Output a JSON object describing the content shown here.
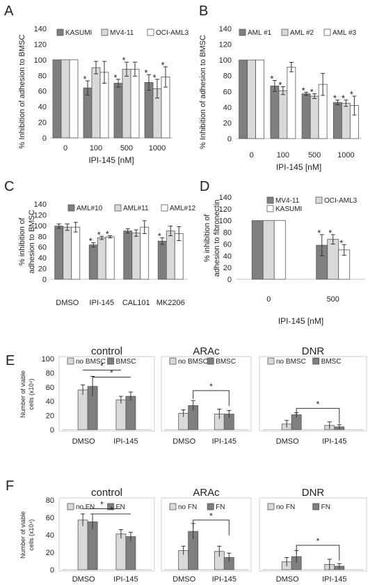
{
  "colors": {
    "dark": "#7f7f7f",
    "light": "#d9d9d9",
    "white": "#ffffff",
    "axis": "#bfbfbf",
    "text": "#222222"
  },
  "chart_data": [
    {
      "id": "A",
      "type": "bar",
      "letter": "A",
      "ylabel": "% Inhibition of adhesion to BMSC",
      "xlabel": "IPI-145 [nM]",
      "ylim": [
        0,
        140
      ],
      "yticks": [
        0,
        20,
        40,
        60,
        80,
        100,
        120,
        140
      ],
      "grid": false,
      "categories": [
        "0",
        "100",
        "500",
        "1000"
      ],
      "series": [
        {
          "name": "KASUMI",
          "color": "dark",
          "values": [
            100,
            64,
            70,
            71
          ],
          "err": [
            0,
            9,
            5,
            10
          ],
          "stars": [
            false,
            true,
            true,
            true
          ]
        },
        {
          "name": "MV4-11",
          "color": "light",
          "values": [
            100,
            90,
            88,
            63
          ],
          "err": [
            0,
            8,
            9,
            12
          ],
          "stars": [
            false,
            false,
            true,
            true
          ]
        },
        {
          "name": "OCI-AML3",
          "color": "white",
          "values": [
            100,
            84,
            88,
            78
          ],
          "err": [
            0,
            14,
            9,
            13
          ],
          "stars": [
            false,
            false,
            false,
            true
          ]
        }
      ]
    },
    {
      "id": "B",
      "type": "bar",
      "letter": "B",
      "ylabel": "% Inhibition of adhesion to BMSC",
      "xlabel": "IPI-145 [nM]",
      "ylim": [
        0,
        140
      ],
      "yticks": [
        0,
        20,
        40,
        60,
        80,
        100,
        120,
        140
      ],
      "grid": false,
      "categories": [
        "0",
        "100",
        "500",
        "1000"
      ],
      "series": [
        {
          "name": "AML #1",
          "color": "dark",
          "values": [
            100,
            67,
            57,
            46
          ],
          "err": [
            0,
            7,
            2,
            3
          ],
          "stars": [
            false,
            true,
            true,
            true
          ]
        },
        {
          "name": "AML #2",
          "color": "light",
          "values": [
            100,
            61,
            54,
            45
          ],
          "err": [
            0,
            5,
            3,
            4
          ],
          "stars": [
            false,
            true,
            true,
            true
          ]
        },
        {
          "name": "AML #3",
          "color": "white",
          "values": [
            100,
            91,
            69,
            42
          ],
          "err": [
            0,
            6,
            14,
            12
          ],
          "stars": [
            false,
            false,
            false,
            true
          ]
        }
      ]
    },
    {
      "id": "C",
      "type": "bar",
      "letter": "C",
      "ylabel": "% inhibition of adhesion to BMSC",
      "xlabel": "",
      "ylim": [
        0,
        140
      ],
      "yticks": [
        0,
        20,
        40,
        60,
        80,
        100,
        120,
        140
      ],
      "grid": false,
      "categories": [
        "DMSO",
        "IPI-145",
        "CAL101",
        "MK2206"
      ],
      "series": [
        {
          "name": "AML#10",
          "color": "dark",
          "values": [
            99,
            64,
            90,
            71
          ],
          "err": [
            4,
            4,
            4,
            6
          ],
          "stars": [
            false,
            true,
            false,
            true
          ]
        },
        {
          "name": "AML#11",
          "color": "light",
          "values": [
            97,
            77,
            86,
            90
          ],
          "err": [
            6,
            3,
            6,
            9
          ],
          "stars": [
            false,
            true,
            false,
            false
          ]
        },
        {
          "name": "AML#12",
          "color": "white",
          "values": [
            97,
            79,
            97,
            85
          ],
          "err": [
            9,
            2,
            12,
            13
          ],
          "stars": [
            false,
            true,
            false,
            false
          ]
        }
      ]
    },
    {
      "id": "D",
      "type": "bar",
      "letter": "D",
      "ylabel": "% inhibition of adhesion to fibronectin",
      "xlabel": "IPI-145 [nM]",
      "ylim": [
        0,
        140
      ],
      "yticks": [
        0,
        20,
        40,
        60,
        80,
        100,
        120,
        140
      ],
      "grid": false,
      "categories": [
        "0",
        "500"
      ],
      "series": [
        {
          "name": "MV4-11",
          "color": "dark",
          "values": [
            100,
            58
          ],
          "err": [
            0,
            18
          ],
          "stars": [
            false,
            true
          ]
        },
        {
          "name": "OCI-AML3",
          "color": "light",
          "values": [
            100,
            68
          ],
          "err": [
            0,
            8
          ],
          "stars": [
            false,
            true
          ]
        },
        {
          "name": "KASUMI",
          "color": "white",
          "values": [
            100,
            50
          ],
          "err": [
            0,
            9
          ],
          "stars": [
            false,
            true
          ]
        }
      ]
    },
    {
      "id": "E",
      "type": "bar",
      "letter": "E",
      "ylabel": "Number of viable cells (x10⁴)",
      "ylim": [
        0,
        100
      ],
      "yticks": [
        0,
        20,
        40,
        60,
        80,
        100
      ],
      "grid": false,
      "subplots": [
        {
          "title": "control",
          "categories": [
            "DMSO",
            "IPI-145"
          ],
          "series": [
            {
              "name": "no BMSC",
              "color": "light",
              "values": [
                56,
                42
              ],
              "err": [
                7,
                5
              ]
            },
            {
              "name": "BMSC",
              "color": "dark",
              "values": [
                61,
                47
              ],
              "err": [
                14,
                6
              ]
            }
          ],
          "brackets": [
            {
              "label": "*",
              "level": 84
            },
            {
              "label": "*",
              "level": 74
            }
          ]
        },
        {
          "title": "ARAc",
          "categories": [
            "DMSO",
            "IPI-145"
          ],
          "series": [
            {
              "name": "no BMSC",
              "color": "light",
              "values": [
                23,
                22
              ],
              "err": [
                5,
                7
              ]
            },
            {
              "name": "BMSC",
              "color": "dark",
              "values": [
                34,
                22
              ],
              "err": [
                7,
                5
              ]
            }
          ],
          "brackets": [
            {
              "label": "*",
              "level": 55
            }
          ]
        },
        {
          "title": "DNR",
          "categories": [
            "DMSO",
            "IPI-145"
          ],
          "series": [
            {
              "name": "no BMSC",
              "color": "light",
              "values": [
                8,
                6
              ],
              "err": [
                5,
                5
              ]
            },
            {
              "name": "BMSC",
              "color": "dark",
              "values": [
                21,
                4
              ],
              "err": [
                3,
                3
              ]
            }
          ],
          "brackets": [
            {
              "label": "*",
              "level": 30
            }
          ]
        }
      ]
    },
    {
      "id": "F",
      "type": "bar",
      "letter": "F",
      "ylabel": "Number of viable cells (x10⁴)",
      "ylim": [
        0,
        80
      ],
      "yticks": [
        0,
        20,
        40,
        60,
        80
      ],
      "grid": false,
      "subplots": [
        {
          "title": "control",
          "categories": [
            "DMSO",
            "IPI-145"
          ],
          "series": [
            {
              "name": "no FN",
              "color": "light",
              "values": [
                57,
                41
              ],
              "err": [
                7,
                5
              ]
            },
            {
              "name": "FN",
              "color": "dark",
              "values": [
                55,
                38
              ],
              "err": [
                9,
                5
              ]
            }
          ],
          "brackets": [
            {
              "label": "*",
              "level": 70
            },
            {
              "label": "*",
              "level": 64
            }
          ]
        },
        {
          "title": "ARAc",
          "categories": [
            "DMSO",
            "IPI-145"
          ],
          "series": [
            {
              "name": "no FN",
              "color": "light",
              "values": [
                22,
                21
              ],
              "err": [
                5,
                6
              ]
            },
            {
              "name": "FN",
              "color": "dark",
              "values": [
                44,
                14
              ],
              "err": [
                9,
                5
              ]
            }
          ],
          "brackets": [
            {
              "label": "*",
              "level": 57
            }
          ]
        },
        {
          "title": "DNR",
          "categories": [
            "DMSO",
            "IPI-145"
          ],
          "series": [
            {
              "name": "no FN",
              "color": "light",
              "values": [
                9,
                6
              ],
              "err": [
                5,
                6
              ]
            },
            {
              "name": "FN",
              "color": "dark",
              "values": [
                15,
                4
              ],
              "err": [
                7,
                3
              ]
            }
          ],
          "brackets": [
            {
              "label": "*",
              "level": 28
            }
          ]
        }
      ]
    }
  ]
}
